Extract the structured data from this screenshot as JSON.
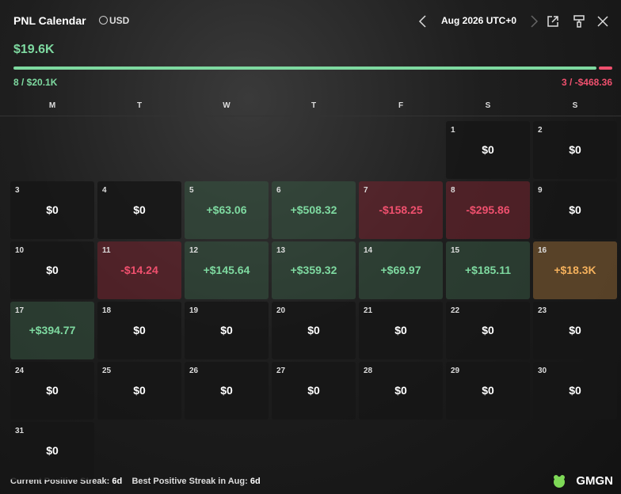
{
  "header": {
    "title": "PNL Calendar",
    "currency": "USD",
    "month": "Aug 2026 UTC+0"
  },
  "summary": {
    "total": "$19.6K",
    "wins": "8 / $20.1K",
    "losses": "3 / -$468.36"
  },
  "weekdays": [
    "M",
    "T",
    "W",
    "T",
    "F",
    "S",
    "S"
  ],
  "days": [
    {
      "day": "1",
      "pnl": "$0"
    },
    {
      "day": "2",
      "pnl": "$0"
    },
    {
      "day": "3",
      "pnl": "$0"
    },
    {
      "day": "4",
      "pnl": "$0"
    },
    {
      "day": "5",
      "pnl": "+$63.06",
      "color": "green"
    },
    {
      "day": "6",
      "pnl": "+$508.32",
      "color": "green"
    },
    {
      "day": "7",
      "pnl": "-$158.25",
      "color": "red"
    },
    {
      "day": "8",
      "pnl": "-$295.86",
      "color": "red"
    },
    {
      "day": "9",
      "pnl": "$0"
    },
    {
      "day": "10",
      "pnl": "$0"
    },
    {
      "day": "11",
      "pnl": "-$14.24",
      "color": "red"
    },
    {
      "day": "12",
      "pnl": "+$145.64",
      "color": "green"
    },
    {
      "day": "13",
      "pnl": "+$359.32",
      "color": "green"
    },
    {
      "day": "14",
      "pnl": "+$69.97",
      "color": "green"
    },
    {
      "day": "15",
      "pnl": "+$185.11",
      "color": "green"
    },
    {
      "day": "16",
      "pnl": "+$18.3K",
      "color": "orange"
    },
    {
      "day": "17",
      "pnl": "+$394.77",
      "color": "green"
    },
    {
      "day": "18",
      "pnl": "$0"
    },
    {
      "day": "19",
      "pnl": "$0"
    },
    {
      "day": "20",
      "pnl": "$0"
    },
    {
      "day": "21",
      "pnl": "$0"
    },
    {
      "day": "22",
      "pnl": "$0"
    },
    {
      "day": "23",
      "pnl": "$0"
    },
    {
      "day": "24",
      "pnl": "$0"
    },
    {
      "day": "25",
      "pnl": "$0"
    },
    {
      "day": "26",
      "pnl": "$0"
    },
    {
      "day": "27",
      "pnl": "$0"
    },
    {
      "day": "28",
      "pnl": "$0"
    },
    {
      "day": "29",
      "pnl": "$0"
    },
    {
      "day": "30",
      "pnl": "$0"
    },
    {
      "day": "31",
      "pnl": "$0"
    }
  ],
  "footer": {
    "current_label": "Current Positive Streak:",
    "current": "6d",
    "best_label": "Best Positive Streak in Aug:",
    "best": "6d",
    "brand": "GMGN"
  }
}
